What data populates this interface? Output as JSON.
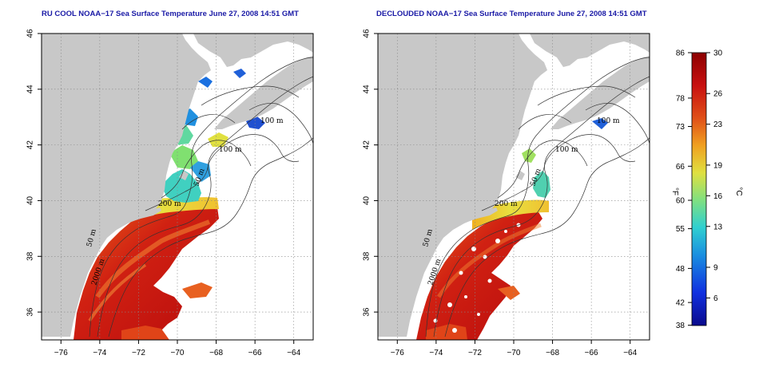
{
  "panels": [
    {
      "title": "RU COOL NOAA−17 Sea Surface Temperature June 27, 2008 14:51 GMT",
      "contour_labels": [
        "100 m",
        "100 m",
        "50 m",
        "200 m",
        "50 m",
        "2000 m"
      ]
    },
    {
      "title": "DECLOUDED NOAA−17 Sea Surface Temperature June 27, 2008 14:51 GMT",
      "contour_labels": [
        "100 m",
        "100 m",
        "50 m",
        "200 m",
        "50 m",
        "2000 m"
      ]
    }
  ],
  "axes": {
    "x_ticks": [
      "−76",
      "−74",
      "−72",
      "−70",
      "−68",
      "−66",
      "−64"
    ],
    "x_values": [
      -76,
      -74,
      -72,
      -70,
      -68,
      -66,
      -64
    ],
    "y_ticks": [
      "36",
      "38",
      "40",
      "42",
      "44",
      "46"
    ],
    "y_values": [
      36,
      38,
      40,
      42,
      44,
      46
    ],
    "xlim": [
      -77,
      -63
    ],
    "ylim": [
      35,
      46
    ]
  },
  "colorbar": {
    "f_label": "°F",
    "c_label": "°C",
    "f_ticks": [
      "86",
      "78",
      "73",
      "66",
      "60",
      "55",
      "48",
      "42",
      "38"
    ],
    "c_ticks": [
      "30",
      "26",
      "23",
      "19",
      "16",
      "13",
      "9",
      "6"
    ],
    "c_values": [
      30,
      26,
      23,
      19,
      16,
      13,
      9,
      6
    ],
    "c_range": [
      3.3,
      30
    ],
    "colors": [
      "#0a0a8c",
      "#1030e0",
      "#1a90e0",
      "#30d0d0",
      "#80e080",
      "#e0e040",
      "#f0a020",
      "#e05018",
      "#c81010",
      "#8c0000"
    ]
  },
  "colors": {
    "land": "#c8c8c8",
    "title": "#1a1aa6"
  }
}
